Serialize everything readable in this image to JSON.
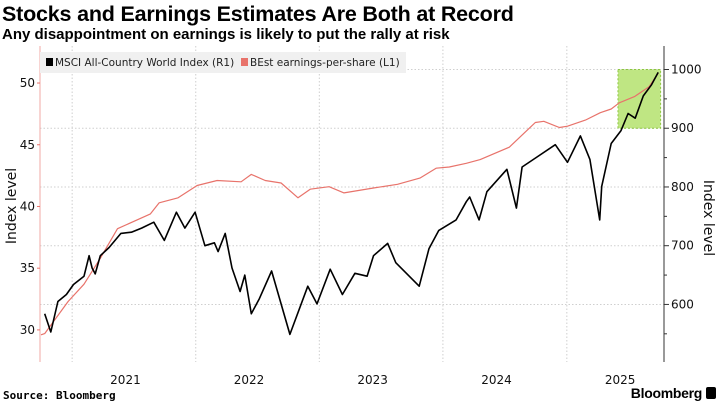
{
  "title": "Stocks and Earnings Estimates Are Both at Record",
  "subtitle": "Any disappointment on earnings is likely to put the rally at risk",
  "source": "Source: Bloomberg",
  "brand": "Bloomberg",
  "chart_data": {
    "type": "line",
    "title": "Stocks and Earnings Estimates Are Both at Record",
    "subtitle": "Any disappointment on earnings is likely to put the rally at risk",
    "x_axis": {
      "type": "date",
      "range": [
        "2020-09-28",
        "2025-10-15"
      ],
      "tick_labels": [
        "2021",
        "2022",
        "2023",
        "2024",
        "2025"
      ]
    },
    "y_left": {
      "label": "Index level",
      "range": [
        27.4,
        53.0
      ],
      "ticks": [
        30,
        35,
        40,
        45,
        50
      ],
      "tick_labels": [
        "30",
        "35",
        "40",
        "45",
        "50"
      ],
      "color": "#e8736b"
    },
    "y_right": {
      "label": "Index level",
      "range": [
        502,
        1040
      ],
      "ticks": [
        600,
        700,
        800,
        900,
        1000
      ],
      "tick_labels": [
        "600",
        "700",
        "800",
        "900",
        "1000"
      ],
      "minor_ticks": [
        550,
        650,
        750,
        850,
        950
      ]
    },
    "grid": true,
    "legend": {
      "placement": "top-left",
      "entries": [
        "MSCI All-Country World Index (R1)",
        "BEst earnings-per-share (L1)"
      ]
    },
    "highlight": {
      "x_range": [
        "2025-06-01",
        "2025-10-05"
      ],
      "y_right_range": [
        900,
        1000
      ],
      "color": "#a9dd5a"
    },
    "series": [
      {
        "name": "MSCI All-Country World Index (R1)",
        "axis": "right",
        "color": "#000000",
        "points": [
          [
            "2020-10-12",
            584
          ],
          [
            "2020-10-30",
            553
          ],
          [
            "2020-11-20",
            605
          ],
          [
            "2020-12-15",
            617
          ],
          [
            "2021-01-05",
            634
          ],
          [
            "2021-02-05",
            648
          ],
          [
            "2021-02-20",
            683
          ],
          [
            "2021-03-01",
            662
          ],
          [
            "2021-03-10",
            652
          ],
          [
            "2021-03-25",
            683
          ],
          [
            "2021-04-20",
            697
          ],
          [
            "2021-05-25",
            721
          ],
          [
            "2021-06-25",
            723
          ],
          [
            "2021-07-25",
            730
          ],
          [
            "2021-08-30",
            740
          ],
          [
            "2021-09-30",
            709
          ],
          [
            "2021-11-05",
            757
          ],
          [
            "2021-11-30",
            730
          ],
          [
            "2021-12-30",
            757
          ],
          [
            "2022-01-28",
            700
          ],
          [
            "2022-02-25",
            705
          ],
          [
            "2022-03-08",
            690
          ],
          [
            "2022-03-29",
            721
          ],
          [
            "2022-04-18",
            662
          ],
          [
            "2022-05-12",
            622
          ],
          [
            "2022-05-26",
            650
          ],
          [
            "2022-06-14",
            584
          ],
          [
            "2022-07-08",
            610
          ],
          [
            "2022-08-13",
            657
          ],
          [
            "2022-10-06",
            549
          ],
          [
            "2022-11-28",
            631
          ],
          [
            "2022-12-25",
            601
          ],
          [
            "2023-02-02",
            660
          ],
          [
            "2023-03-10",
            617
          ],
          [
            "2023-04-16",
            653
          ],
          [
            "2023-05-22",
            648
          ],
          [
            "2023-06-10",
            683
          ],
          [
            "2023-07-22",
            704
          ],
          [
            "2023-08-15",
            671
          ],
          [
            "2023-10-23",
            631
          ],
          [
            "2023-11-21",
            695
          ],
          [
            "2023-12-20",
            726
          ],
          [
            "2024-02-09",
            744
          ],
          [
            "2024-03-10",
            775
          ],
          [
            "2024-03-20",
            783
          ],
          [
            "2024-04-17",
            744
          ],
          [
            "2024-05-10",
            792
          ],
          [
            "2024-07-08",
            830
          ],
          [
            "2024-08-05",
            764
          ],
          [
            "2024-08-22",
            834
          ],
          [
            "2024-10-05",
            851
          ],
          [
            "2024-11-28",
            872
          ],
          [
            "2025-01-03",
            842
          ],
          [
            "2025-02-10",
            887
          ],
          [
            "2025-03-10",
            847
          ],
          [
            "2025-04-08",
            744
          ],
          [
            "2025-04-14",
            801
          ],
          [
            "2025-05-12",
            874
          ],
          [
            "2025-06-10",
            896
          ],
          [
            "2025-07-01",
            925
          ],
          [
            "2025-07-22",
            917
          ],
          [
            "2025-08-15",
            955
          ],
          [
            "2025-09-08",
            974
          ],
          [
            "2025-09-28",
            995
          ]
        ]
      },
      {
        "name": "BEst earnings-per-share (L1)",
        "axis": "left",
        "color": "#e8736b",
        "points": [
          [
            "2020-10-01",
            29.6
          ],
          [
            "2020-10-12",
            29.7
          ],
          [
            "2020-12-20",
            32.3
          ],
          [
            "2021-02-05",
            33.7
          ],
          [
            "2021-03-25",
            35.8
          ],
          [
            "2021-05-15",
            38.2
          ],
          [
            "2021-08-20",
            39.4
          ],
          [
            "2021-09-15",
            40.3
          ],
          [
            "2021-11-10",
            40.7
          ],
          [
            "2022-01-05",
            41.7
          ],
          [
            "2022-03-05",
            42.1
          ],
          [
            "2022-05-15",
            42.0
          ],
          [
            "2022-06-14",
            42.6
          ],
          [
            "2022-07-25",
            42.1
          ],
          [
            "2022-09-10",
            41.9
          ],
          [
            "2022-10-30",
            40.7
          ],
          [
            "2022-12-05",
            41.4
          ],
          [
            "2023-01-30",
            41.6
          ],
          [
            "2023-03-15",
            41.1
          ],
          [
            "2023-06-10",
            41.5
          ],
          [
            "2023-08-20",
            41.8
          ],
          [
            "2023-10-25",
            42.3
          ],
          [
            "2023-12-12",
            43.1
          ],
          [
            "2024-01-20",
            43.2
          ],
          [
            "2024-03-10",
            43.5
          ],
          [
            "2024-04-20",
            43.8
          ],
          [
            "2024-07-15",
            44.8
          ],
          [
            "2024-09-30",
            46.8
          ],
          [
            "2024-10-25",
            46.9
          ],
          [
            "2024-12-10",
            46.4
          ],
          [
            "2025-01-03",
            46.5
          ],
          [
            "2025-02-25",
            47.0
          ],
          [
            "2025-04-10",
            47.6
          ],
          [
            "2025-05-12",
            47.9
          ],
          [
            "2025-06-05",
            48.4
          ],
          [
            "2025-07-20",
            48.9
          ],
          [
            "2025-09-01",
            49.7
          ],
          [
            "2025-09-28",
            50.8
          ]
        ]
      }
    ]
  }
}
